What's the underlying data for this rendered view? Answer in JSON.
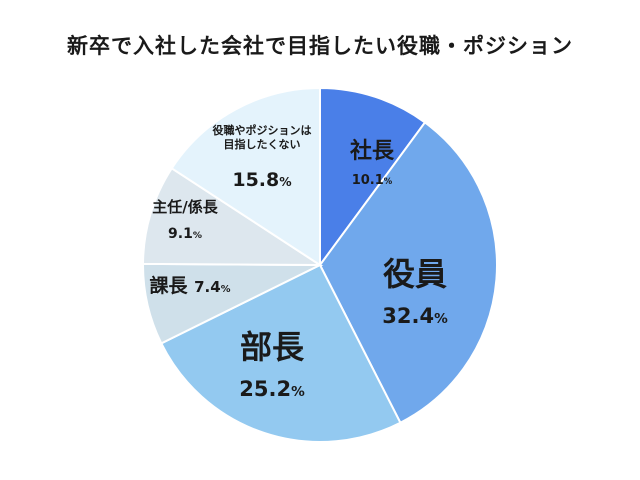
{
  "chart_data": {
    "type": "pie",
    "title": "新卒で入社した会社で目指したい役職・ポジション",
    "start_angle_deg": 0,
    "direction": "clockwise",
    "slices": [
      {
        "label": "社長",
        "value": 10.1,
        "display": "10.1",
        "color": "#4a7fe8"
      },
      {
        "label": "役員",
        "value": 32.4,
        "display": "32.4",
        "color": "#70a8ec"
      },
      {
        "label": "部長",
        "value": 25.2,
        "display": "25.2",
        "color": "#93c9f0"
      },
      {
        "label": "課長",
        "value": 7.4,
        "display": "7.4",
        "color": "#cfe0ea"
      },
      {
        "label": "主任/係長",
        "value": 9.1,
        "display": "9.1",
        "color": "#dde7ee"
      },
      {
        "label": "役職やポジションは目指したくない",
        "value": 15.8,
        "display": "15.8",
        "color": "#e4f3fc",
        "label_lines": [
          "役職やポジションは",
          "目指したくない"
        ]
      }
    ],
    "unit": "%"
  }
}
